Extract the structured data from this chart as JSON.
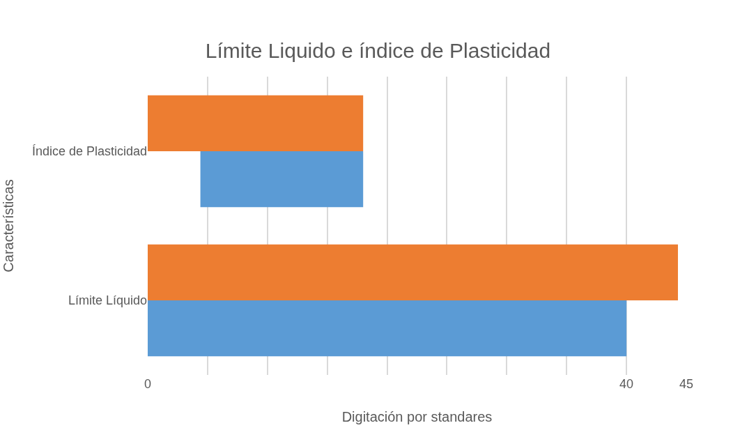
{
  "chart_data": {
    "type": "bar",
    "orientation": "horizontal",
    "title": "Límite Liquido e índice de Plasticidad",
    "xlabel": "Digitación por standares",
    "ylabel": "Características",
    "categories": [
      "Índice de Plasticidad",
      "Límite Líquido"
    ],
    "series": [
      {
        "color": "#ed7d31",
        "values": [
          18,
          44.3
        ],
        "base": [
          0,
          0
        ]
      },
      {
        "color": "#5b9bd5",
        "values": [
          13.6,
          40
        ],
        "base": [
          4.4,
          0
        ]
      }
    ],
    "xlim": [
      0,
      45
    ],
    "xticks": [
      0,
      {
        "value": 5,
        "label": null
      },
      {
        "value": 10,
        "label": null
      },
      {
        "value": 15,
        "label": null
      },
      {
        "value": 20,
        "label": null
      },
      {
        "value": 25,
        "label": null
      },
      {
        "value": 30,
        "label": null
      },
      {
        "value": 35,
        "label": null
      },
      40,
      45
    ],
    "grid": "x"
  }
}
